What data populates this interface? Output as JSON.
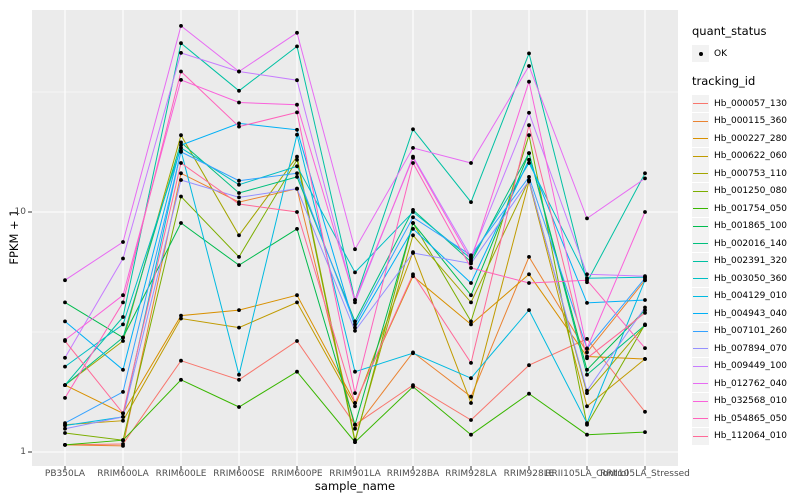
{
  "chart_data": {
    "type": "line",
    "xlabel": "sample_name",
    "ylabel": "FPKM + 1",
    "y_scale": "log10",
    "grid": true,
    "panel_color": "#EBEBEB",
    "grid_color": "#FFFFFF",
    "point_color": "#000000",
    "legend_position": "right",
    "y_ticks": [
      {
        "label": "10",
        "value": 10
      },
      {
        "label": "1",
        "value": 1
      }
    ],
    "y_minor_ticks": [
      3.1623,
      31.623
    ],
    "ylim_fpkm": [
      0.87,
      75
    ],
    "categories": [
      "PB350LA",
      "RRIM600LA",
      "RRIM600LE",
      "RRIM600SE",
      "RRIM600PE",
      "RRIM901LA",
      "RRIM928BA",
      "RRIM928LA",
      "RRIM928LE",
      "RRII105LA_Control",
      "RRII105LA_Stressed"
    ],
    "legend": {
      "quant_status_title": "quant_status",
      "quant_status_value": "OK",
      "tracking_title": "tracking_id"
    },
    "series": [
      {
        "name": "Hb_000057_130",
        "color": "#F8766D",
        "values": [
          1.07,
          1.08,
          2.4,
          2.0,
          2.9,
          1.3,
          1.9,
          1.36,
          2.3,
          2.96,
          1.47
        ]
      },
      {
        "name": "Hb_000115_360",
        "color": "#EA8331",
        "values": [
          1.07,
          1.06,
          14.5,
          11.0,
          12.5,
          1.25,
          2.6,
          1.7,
          6.5,
          2.6,
          5.2
        ]
      },
      {
        "name": "Hb_000227_280",
        "color": "#D89000",
        "values": [
          1.9,
          1.45,
          3.7,
          3.9,
          4.5,
          1.6,
          5.4,
          3.4,
          5.5,
          2.5,
          2.44
        ]
      },
      {
        "name": "Hb_000622_060",
        "color": "#C09B00",
        "values": [
          1.3,
          1.35,
          3.6,
          3.3,
          4.2,
          1.55,
          6.8,
          1.6,
          13.4,
          1.55,
          2.44
        ]
      },
      {
        "name": "Hb_000753_110",
        "color": "#A3A500",
        "values": [
          1.9,
          2.9,
          20.9,
          8.0,
          17.0,
          1.12,
          8.0,
          4.2,
          13.6,
          1.76,
          3.38
        ]
      },
      {
        "name": "Hb_001250_080",
        "color": "#7CAE00",
        "values": [
          1.2,
          1.12,
          11.6,
          6.5,
          16.5,
          1.1,
          9.0,
          3.5,
          20.9,
          1.3,
          3.4
        ]
      },
      {
        "name": "Hb_001754_050",
        "color": "#39B600",
        "values": [
          1.07,
          1.12,
          2.0,
          1.54,
          2.16,
          1.1,
          1.87,
          1.18,
          1.75,
          1.18,
          1.21
        ]
      },
      {
        "name": "Hb_001865_100",
        "color": "#00BB4E",
        "values": [
          4.2,
          3.0,
          9.0,
          6.0,
          8.5,
          1.3,
          9.0,
          4.5,
          17.6,
          2.2,
          3.9
        ]
      },
      {
        "name": "Hb_002016_140",
        "color": "#00BF7D",
        "values": [
          1.9,
          3.0,
          19.5,
          12.0,
          14.0,
          3.5,
          10.2,
          6.2,
          17.6,
          2.1,
          3.38
        ]
      },
      {
        "name": "Hb_002391_320",
        "color": "#00C1A3",
        "values": [
          1.9,
          3.65,
          50.5,
          32.0,
          49.0,
          4.3,
          22.1,
          11.0,
          45.8,
          5.1,
          14.5
        ]
      },
      {
        "name": "Hb_003050_360",
        "color": "#00BFC4",
        "values": [
          2.27,
          3.4,
          18.5,
          13.0,
          15.5,
          5.6,
          10.0,
          6.4,
          16.0,
          5.3,
          5.35
        ]
      },
      {
        "name": "Hb_004129_010",
        "color": "#00BAE0",
        "values": [
          1.29,
          1.4,
          18.0,
          2.1,
          21.0,
          2.16,
          2.58,
          2.03,
          3.9,
          1.32,
          5.2
        ]
      },
      {
        "name": "Hb_004943_040",
        "color": "#00B0F6",
        "values": [
          3.5,
          2.2,
          19.0,
          23.4,
          22.0,
          3.3,
          8.5,
          5.06,
          16.5,
          4.18,
          4.3
        ]
      },
      {
        "name": "Hb_007101_260",
        "color": "#35A2FF",
        "values": [
          1.32,
          1.78,
          17.8,
          13.5,
          14.5,
          3.4,
          9.5,
          6.6,
          14.0,
          2.7,
          5.3
        ]
      },
      {
        "name": "Hb_007894_070",
        "color": "#9590FF",
        "values": [
          1.25,
          1.4,
          13.6,
          11.5,
          12.5,
          3.2,
          6.75,
          6.1,
          13.5,
          1.8,
          4.0
        ]
      },
      {
        "name": "Hb_009449_100",
        "color": "#C77CFF",
        "values": [
          2.47,
          6.4,
          46.0,
          38.5,
          35.4,
          4.2,
          17.0,
          6.5,
          25.9,
          5.5,
          5.4
        ]
      },
      {
        "name": "Hb_012762_040",
        "color": "#E76BF3",
        "values": [
          5.2,
          7.5,
          59.6,
          38.5,
          55.8,
          7.0,
          18.5,
          16.0,
          40.6,
          9.4,
          13.8
        ]
      },
      {
        "name": "Hb_032568_010",
        "color": "#FA62DB",
        "values": [
          2.93,
          4.5,
          35.5,
          28.6,
          28.0,
          4.3,
          16.8,
          6.3,
          34.9,
          2.7,
          10.0
        ]
      },
      {
        "name": "Hb_054865_050",
        "color": "#FF62BC",
        "values": [
          1.68,
          4.2,
          38.5,
          22.7,
          26.0,
          1.76,
          16.0,
          5.85,
          5.06,
          5.2,
          2.71
        ]
      },
      {
        "name": "Hb_112064_010",
        "color": "#FF6A98",
        "values": [
          2.9,
          1.45,
          16.0,
          10.8,
          10.0,
          1.6,
          5.5,
          2.35,
          23.0,
          2.46,
          3.8
        ]
      }
    ]
  }
}
